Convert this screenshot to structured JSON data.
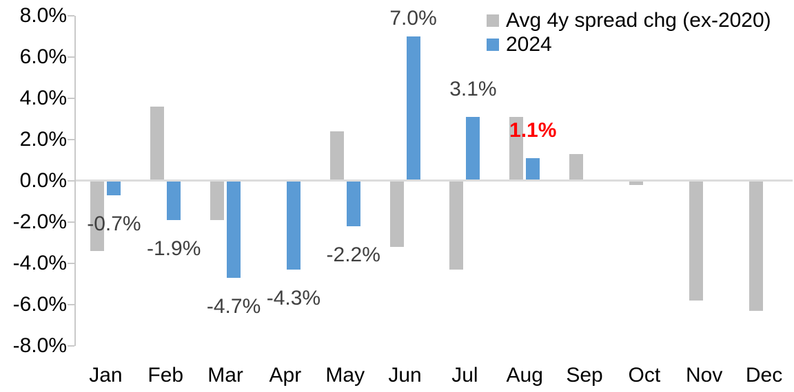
{
  "chart_data": {
    "type": "bar",
    "title": "",
    "xlabel": "",
    "ylabel": "",
    "grid": false,
    "legend_position": "top-right",
    "categories": [
      "Jan",
      "Feb",
      "Mar",
      "Apr",
      "May",
      "Jun",
      "Jul",
      "Aug",
      "Sep",
      "Oct",
      "Nov",
      "Dec"
    ],
    "series": [
      {
        "name": "Avg 4y spread chg (ex-2020)",
        "color": "#BFBFBF",
        "values": [
          -3.4,
          3.6,
          -1.9,
          0.0,
          2.4,
          -3.2,
          -4.3,
          3.1,
          1.3,
          -0.2,
          -5.8,
          -6.3
        ]
      },
      {
        "name": "2024",
        "color": "#5B9BD5",
        "values": [
          -0.7,
          -1.9,
          -4.7,
          -4.3,
          -2.2,
          7.0,
          3.1,
          1.1,
          null,
          null,
          null,
          null
        ]
      }
    ],
    "data_labels": [
      {
        "index": 0,
        "text": "-0.7%",
        "color": "#404040",
        "bold": false
      },
      {
        "index": 1,
        "text": "-1.9%",
        "color": "#404040",
        "bold": false
      },
      {
        "index": 2,
        "text": "-4.7%",
        "color": "#404040",
        "bold": false
      },
      {
        "index": 3,
        "text": "-4.3%",
        "color": "#404040",
        "bold": false
      },
      {
        "index": 4,
        "text": "-2.2%",
        "color": "#404040",
        "bold": false
      },
      {
        "index": 5,
        "text": "7.0%",
        "color": "#404040",
        "bold": false
      },
      {
        "index": 6,
        "text": "3.1%",
        "color": "#404040",
        "bold": false
      },
      {
        "index": 7,
        "text": "1.1%",
        "color": "#FF0000",
        "bold": true
      }
    ],
    "y_axis": {
      "min": -8,
      "max": 8,
      "step": 2,
      "tick_labels": [
        "8.0%",
        "6.0%",
        "4.0%",
        "2.0%",
        "0.0%",
        "-2.0%",
        "-4.0%",
        "-6.0%",
        "-8.0%"
      ]
    }
  },
  "colors": {
    "axis_line": "#C9C9C9",
    "zero_line": "#DCDCDC",
    "tick_text": "#000000"
  }
}
